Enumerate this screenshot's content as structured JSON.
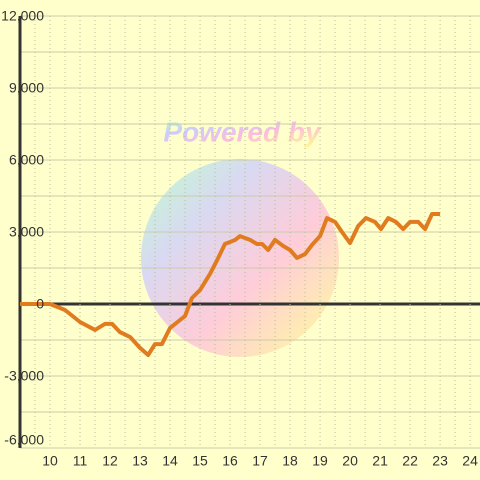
{
  "chart_data": {
    "type": "line",
    "watermark": "Powered by",
    "x": [
      9,
      10,
      10.5,
      11,
      11.5,
      11.83,
      12.07,
      12.33,
      12.67,
      13,
      13.27,
      13.5,
      13.73,
      14,
      14.5,
      14.73,
      15,
      15.33,
      15.57,
      15.83,
      16.17,
      16.33,
      16.67,
      16.9,
      17.07,
      17.27,
      17.5,
      17.77,
      18,
      18.23,
      18.5,
      18.73,
      19,
      19.23,
      19.5,
      19.73,
      20,
      20.27,
      20.53,
      20.83,
      21.03,
      21.27,
      21.53,
      21.77,
      22,
      22.27,
      22.5,
      22.73,
      23
    ],
    "series": [
      {
        "color": "#e07b1f",
        "values": [
          0,
          0,
          -250,
          -750,
          -1080,
          -830,
          -830,
          -1170,
          -1375,
          -1830,
          -2125,
          -1670,
          -1670,
          -1000,
          -500,
          250,
          580,
          1250,
          1830,
          2500,
          2670,
          2830,
          2670,
          2500,
          2500,
          2250,
          2670,
          2420,
          2250,
          1920,
          2080,
          2460,
          2830,
          3580,
          3420,
          3000,
          2540,
          3250,
          3580,
          3420,
          3120,
          3580,
          3420,
          3120,
          3420,
          3420,
          3120,
          3750,
          3750
        ]
      }
    ],
    "xlim": [
      9,
      24.33
    ],
    "xticks": [
      10,
      11,
      12,
      13,
      14,
      15,
      16,
      17,
      18,
      19,
      20,
      21,
      22,
      23,
      24
    ],
    "ylim": [
      -6000,
      12000
    ],
    "yticks": [
      {
        "value": -6000,
        "label": "-6,000"
      },
      {
        "value": -3000,
        "label": "-3,000"
      },
      0,
      {
        "value": 3000,
        "label": "3,000"
      },
      {
        "value": 6000,
        "label": "6,000"
      },
      {
        "value": 9000,
        "label": "9,000"
      },
      {
        "value": 12000,
        "label": "12,000"
      }
    ],
    "y_minor_grid": [
      -4500,
      -1500,
      1500,
      4500,
      7500,
      10500
    ],
    "x_minor_grid": [
      9.5,
      10.5,
      11.5,
      12.5,
      13.5,
      14.5,
      15.5,
      16.5,
      17.5,
      18.5,
      19.5,
      20.5,
      21.5,
      22.5,
      23.5
    ],
    "grid": true
  }
}
